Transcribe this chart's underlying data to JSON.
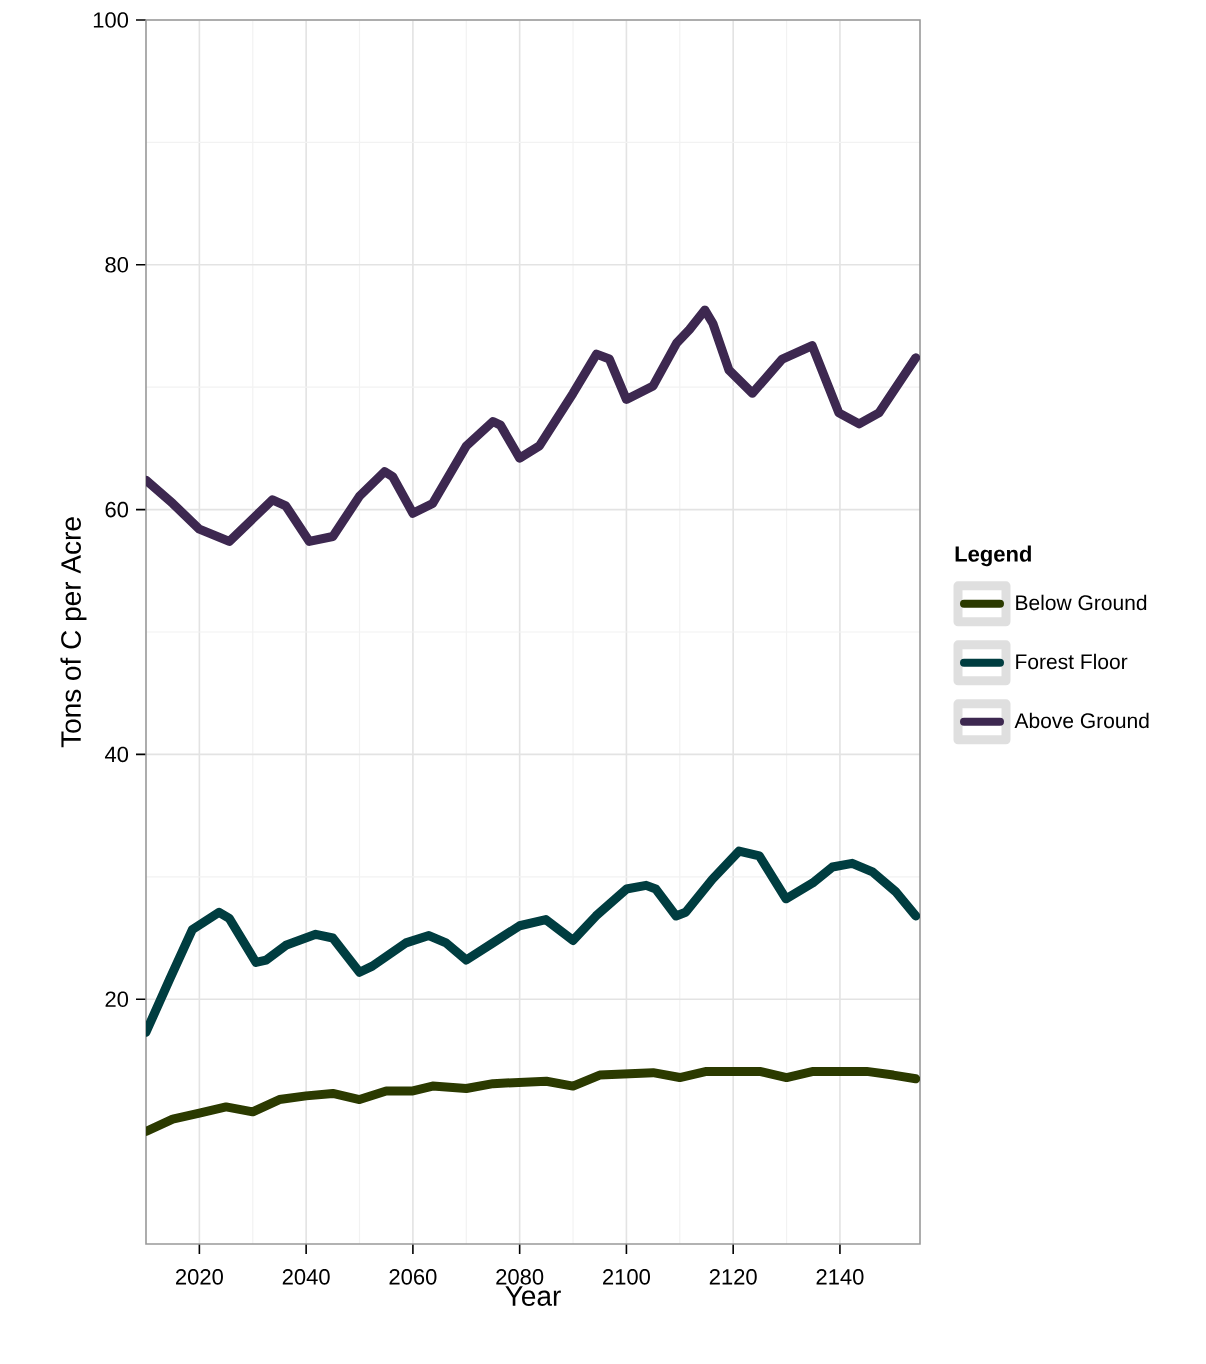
{
  "chart_data": {
    "type": "line",
    "xlabel": "Year",
    "ylabel": "Tons of C per Acre",
    "legend_title": "Legend",
    "xlim": [
      2010,
      2155
    ],
    "xticks": [
      2020,
      2040,
      2060,
      2080,
      2100,
      2120,
      2140
    ],
    "ylim": [
      0,
      100
    ],
    "yticks": [
      20,
      40,
      60,
      80,
      100
    ],
    "grid": true,
    "legend": "right",
    "line_style": "solid",
    "series": [
      {
        "name": "Below Ground",
        "color": "#2b3a00",
        "x": [
          2010,
          2015,
          2020,
          2025,
          2030,
          2035,
          2040,
          2045,
          2050,
          2055,
          2060,
          2063.7,
          2070,
          2075,
          2085,
          2090,
          2095,
          2105,
          2110,
          2115,
          2125,
          2130,
          2135,
          2145,
          2150,
          2154.2
        ],
        "values": [
          9.2,
          10.2,
          10.7,
          11.2,
          10.8,
          11.8,
          12.1,
          12.3,
          11.8,
          12.5,
          12.5,
          12.9,
          12.7,
          13.1,
          13.3,
          12.9,
          13.8,
          14.0,
          13.6,
          14.1,
          14.1,
          13.6,
          14.1,
          14.1,
          13.8,
          13.5
        ]
      },
      {
        "name": "Forest Floor",
        "color": "#003d40",
        "x": [
          2010,
          2014.4,
          2018.7,
          2023.7,
          2025.6,
          2030.6,
          2032.5,
          2036.2,
          2041.8,
          2045,
          2050,
          2052.4,
          2058.7,
          2063,
          2066.2,
          2070,
          2075,
          2080,
          2084.9,
          2090,
          2094.3,
          2100,
          2103.7,
          2105.5,
          2109.3,
          2111.1,
          2116.1,
          2121.1,
          2124.9,
          2129.9,
          2134.9,
          2138.6,
          2142.3,
          2146.1,
          2150.4,
          2154.2
        ],
        "values": [
          17.3,
          21.6,
          25.7,
          27.1,
          26.6,
          23.0,
          23.2,
          24.4,
          25.3,
          25.0,
          22.2,
          22.7,
          24.6,
          25.2,
          24.6,
          23.2,
          24.6,
          26.0,
          26.5,
          24.8,
          26.8,
          29.0,
          29.3,
          29.0,
          26.8,
          27.1,
          29.8,
          32.1,
          31.7,
          28.2,
          29.5,
          30.8,
          31.1,
          30.4,
          28.8,
          26.8
        ]
      },
      {
        "name": "Above Ground",
        "color": "#3d2850",
        "x": [
          2010,
          2015,
          2020,
          2025.6,
          2033.7,
          2036.2,
          2040.6,
          2045,
          2050,
          2054.7,
          2056.2,
          2060,
          2063.7,
          2070,
          2075,
          2076.4,
          2080,
          2083.7,
          2090,
          2094.4,
          2096.8,
          2100,
          2105,
          2109.4,
          2111.8,
          2114.7,
          2116.2,
          2119.2,
          2123.6,
          2129.2,
          2134.8,
          2139.8,
          2143.6,
          2147.3,
          2154.2
        ],
        "values": [
          62.4,
          60.5,
          58.4,
          57.4,
          60.8,
          60.3,
          57.4,
          57.8,
          61.1,
          63.1,
          62.7,
          59.7,
          60.5,
          65.2,
          67.2,
          66.9,
          64.2,
          65.2,
          69.5,
          72.7,
          72.3,
          69.0,
          70.1,
          73.6,
          74.7,
          76.3,
          75.2,
          71.4,
          69.5,
          72.3,
          73.4,
          67.9,
          67.0,
          67.9,
          72.4
        ]
      }
    ]
  }
}
